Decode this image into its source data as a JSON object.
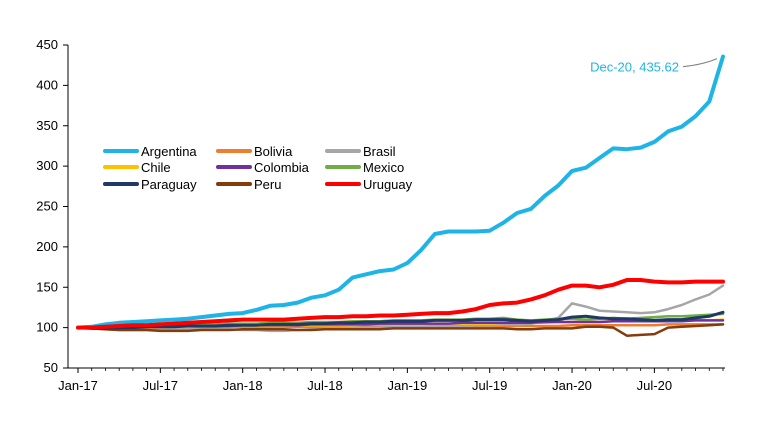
{
  "chart_data": {
    "type": "line",
    "x": [
      "Jan-17",
      "Feb-17",
      "Mar-17",
      "Apr-17",
      "May-17",
      "Jun-17",
      "Jul-17",
      "Aug-17",
      "Sep-17",
      "Oct-17",
      "Nov-17",
      "Dec-17",
      "Jan-18",
      "Feb-18",
      "Mar-18",
      "Apr-18",
      "May-18",
      "Jun-18",
      "Jul-18",
      "Aug-18",
      "Sep-18",
      "Oct-18",
      "Nov-18",
      "Dec-18",
      "Jan-19",
      "Feb-19",
      "Mar-19",
      "Apr-19",
      "May-19",
      "Jun-19",
      "Jul-19",
      "Aug-19",
      "Sep-19",
      "Oct-19",
      "Nov-19",
      "Dec-19",
      "Jan-20",
      "Feb-20",
      "Mar-20",
      "Apr-20",
      "May-20",
      "Jun-20",
      "Jul-20",
      "Aug-20",
      "Sep-20",
      "Oct-20",
      "Nov-20",
      "Dec-20"
    ],
    "x_ticks": [
      "Jan-17",
      "Jul-17",
      "Jan-18",
      "Jul-18",
      "Jan-19",
      "Jul-19",
      "Jan-20",
      "Jul-20"
    ],
    "y_ticks": [
      50,
      100,
      150,
      200,
      250,
      300,
      350,
      400,
      450
    ],
    "ylim": [
      50,
      450
    ],
    "title": "",
    "xlabel": "",
    "ylabel": "",
    "grid": false,
    "legend_position": "left, upper-middle (3 columns)",
    "annotation": {
      "text": "Dec-20, 435.62",
      "x": "Dec-20",
      "y": 435.62,
      "color": "#1fb4e6"
    },
    "series": [
      {
        "name": "Argentina",
        "color": "#1fb4e6",
        "width": 4,
        "values": [
          100,
          101,
          104,
          106,
          107,
          108,
          109,
          110,
          111,
          113,
          115,
          117,
          118,
          122,
          127,
          128,
          131,
          137,
          140,
          147,
          162,
          166,
          170,
          172,
          180,
          196,
          216,
          219,
          219,
          219,
          220,
          230,
          242,
          247,
          263,
          276,
          294,
          298,
          310,
          322,
          321,
          323,
          330,
          343,
          349,
          362,
          380,
          435.62
        ]
      },
      {
        "name": "Bolivia",
        "color": "#ed7d31",
        "width": 2.5,
        "values": [
          100,
          100,
          100,
          100,
          100,
          100,
          100,
          100,
          100,
          100,
          100,
          101,
          101,
          101,
          101,
          101,
          101,
          101,
          101,
          101,
          101,
          101,
          101,
          102,
          102,
          102,
          102,
          102,
          102,
          102,
          102,
          102,
          102,
          102,
          102,
          102,
          103,
          103,
          103,
          103,
          103,
          103,
          103,
          104,
          104,
          104,
          104,
          104
        ]
      },
      {
        "name": "Brasil",
        "color": "#a6a6a6",
        "width": 2.5,
        "values": [
          100,
          99,
          98,
          97,
          97,
          97,
          97,
          98,
          98,
          98,
          98,
          98,
          97,
          97,
          96,
          96,
          97,
          98,
          99,
          99,
          100,
          100,
          100,
          101,
          101,
          101,
          102,
          102,
          102,
          103,
          103,
          104,
          104,
          105,
          108,
          112,
          130,
          126,
          121,
          120,
          119,
          118,
          119,
          123,
          128,
          135,
          141,
          152
        ]
      },
      {
        "name": "Chile",
        "color": "#ffc000",
        "width": 2.5,
        "values": [
          100,
          100,
          100,
          101,
          101,
          101,
          101,
          101,
          101,
          102,
          102,
          102,
          102,
          102,
          102,
          102,
          103,
          103,
          103,
          103,
          103,
          104,
          104,
          104,
          104,
          104,
          105,
          105,
          105,
          105,
          105,
          106,
          106,
          106,
          106,
          107,
          107,
          107,
          107,
          108,
          108,
          108,
          108,
          108,
          109,
          109,
          109,
          110
        ]
      },
      {
        "name": "Colombia",
        "color": "#7030a0",
        "width": 2.5,
        "values": [
          100,
          100,
          100,
          101,
          101,
          101,
          101,
          102,
          102,
          102,
          102,
          102,
          103,
          103,
          103,
          103,
          103,
          104,
          104,
          104,
          104,
          104,
          105,
          105,
          105,
          105,
          105,
          105,
          106,
          106,
          106,
          106,
          106,
          106,
          107,
          107,
          107,
          107,
          107,
          108,
          108,
          108,
          108,
          108,
          108,
          109,
          109,
          109
        ]
      },
      {
        "name": "Mexico",
        "color": "#70ad47",
        "width": 2.5,
        "values": [
          100,
          100,
          101,
          101,
          102,
          102,
          103,
          103,
          103,
          104,
          104,
          105,
          105,
          105,
          106,
          106,
          106,
          107,
          107,
          107,
          108,
          108,
          108,
          109,
          109,
          109,
          110,
          110,
          110,
          111,
          111,
          112,
          110,
          109,
          110,
          111,
          111,
          110,
          111,
          112,
          111,
          112,
          113,
          114,
          114,
          115,
          116,
          117
        ]
      },
      {
        "name": "Paraguay",
        "color": "#1f3864",
        "width": 3,
        "values": [
          100,
          99,
          99,
          100,
          100,
          101,
          101,
          101,
          102,
          102,
          102,
          103,
          103,
          103,
          104,
          104,
          104,
          105,
          105,
          106,
          106,
          107,
          107,
          108,
          108,
          108,
          109,
          109,
          109,
          110,
          110,
          110,
          109,
          108,
          109,
          110,
          113,
          114,
          112,
          111,
          111,
          110,
          109,
          110,
          110,
          112,
          114,
          119
        ]
      },
      {
        "name": "Peru",
        "color": "#843c0c",
        "width": 2.5,
        "values": [
          100,
          99,
          98,
          97,
          97,
          97,
          96,
          96,
          96,
          97,
          97,
          97,
          98,
          98,
          98,
          98,
          97,
          97,
          98,
          98,
          98,
          98,
          98,
          99,
          99,
          99,
          99,
          99,
          99,
          99,
          99,
          99,
          98,
          98,
          99,
          99,
          99,
          101,
          101,
          100,
          90,
          91,
          92,
          100,
          101,
          102,
          103,
          104
        ]
      },
      {
        "name": "Uruguay",
        "color": "#ff0000",
        "width": 4,
        "values": [
          100,
          100,
          101,
          102,
          103,
          103,
          104,
          105,
          106,
          107,
          108,
          109,
          110,
          110,
          110,
          110,
          111,
          112,
          113,
          113,
          114,
          114,
          115,
          115,
          116,
          117,
          118,
          118,
          120,
          123,
          128,
          130,
          131,
          135,
          140,
          147,
          152,
          152,
          150,
          153,
          159,
          159,
          157,
          156,
          156,
          157,
          157,
          157
        ]
      }
    ]
  }
}
